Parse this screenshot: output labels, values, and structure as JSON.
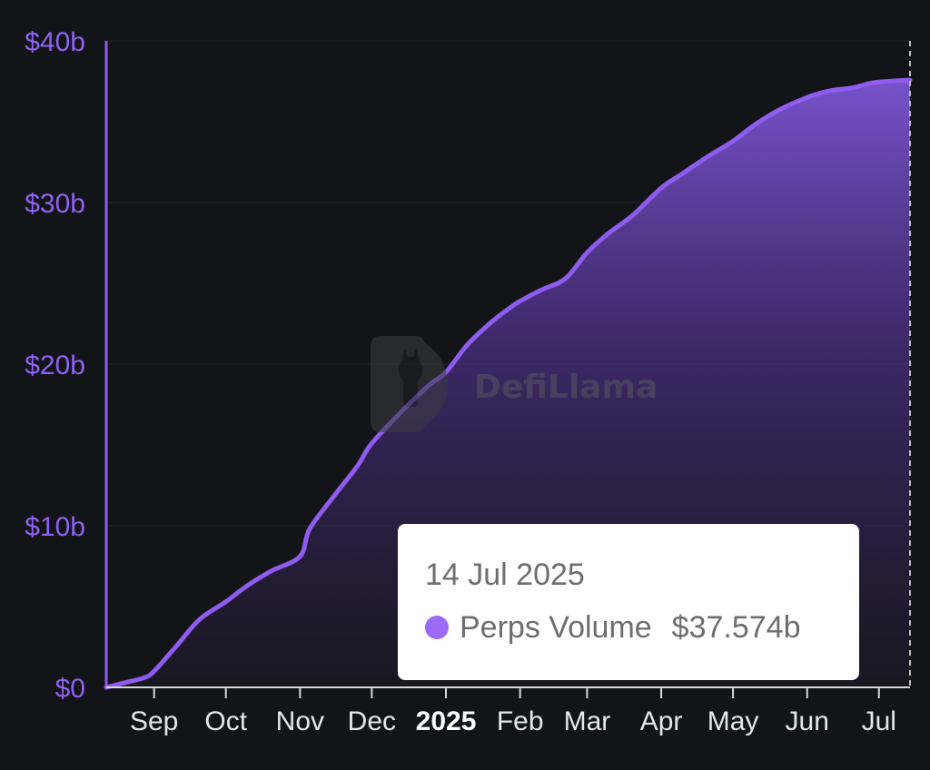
{
  "chart_data": {
    "type": "area",
    "y_tick_labels": [
      "$0",
      "$10b",
      "$20b",
      "$30b",
      "$40b"
    ],
    "y_ticks": [
      0,
      10,
      20,
      30,
      40
    ],
    "ylim": [
      0,
      40
    ],
    "x_tick_labels": [
      "Sep",
      "Oct",
      "Nov",
      "Dec",
      "2025",
      "Feb",
      "Mar",
      "Apr",
      "May",
      "Jun",
      "Jul"
    ],
    "x_tick_dates": [
      "2024-09-01",
      "2024-10-01",
      "2024-11-01",
      "2024-12-01",
      "2025-01-01",
      "2025-02-01",
      "2025-03-01",
      "2025-04-01",
      "2025-05-01",
      "2025-06-01",
      "2025-07-01"
    ],
    "xlim": [
      "2024-08-12",
      "2025-07-14"
    ],
    "grid": true,
    "series": [
      {
        "name": "Perps Volume",
        "color": "#8f5cf0",
        "x": [
          "2024-08-12",
          "2024-08-20",
          "2024-08-28",
          "2024-09-01",
          "2024-09-10",
          "2024-09-20",
          "2024-10-01",
          "2024-10-10",
          "2024-10-20",
          "2024-11-01",
          "2024-11-05",
          "2024-11-15",
          "2024-11-25",
          "2024-12-01",
          "2024-12-15",
          "2024-12-25",
          "2025-01-01",
          "2025-01-10",
          "2025-01-20",
          "2025-01-27",
          "2025-02-01",
          "2025-02-10",
          "2025-02-20",
          "2025-03-01",
          "2025-03-10",
          "2025-03-20",
          "2025-04-01",
          "2025-04-10",
          "2025-04-20",
          "2025-05-01",
          "2025-05-10",
          "2025-05-20",
          "2025-06-01",
          "2025-06-10",
          "2025-06-20",
          "2025-06-28",
          "2025-07-05",
          "2025-07-14"
        ],
        "values": [
          0,
          0.3,
          0.6,
          1.0,
          2.5,
          4.2,
          5.3,
          6.3,
          7.2,
          8.1,
          9.8,
          11.8,
          13.7,
          15.1,
          17.3,
          18.7,
          19.5,
          21.2,
          22.6,
          23.4,
          23.9,
          24.6,
          25.3,
          26.9,
          28.1,
          29.2,
          30.9,
          31.8,
          32.8,
          33.8,
          34.8,
          35.7,
          36.5,
          36.9,
          37.1,
          37.4,
          37.5,
          37.574
        ]
      }
    ]
  },
  "watermark": {
    "text": "DefiLlama"
  },
  "tooltip": {
    "date": "14 Jul 2025",
    "series_name": "Perps Volume",
    "value": "$37.574b",
    "dot_color": "#9b6bf5"
  }
}
